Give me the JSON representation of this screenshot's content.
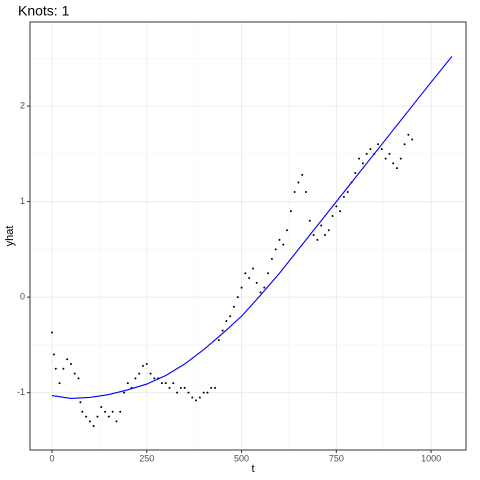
{
  "chart_data": {
    "type": "scatter",
    "title": "Knots: 1",
    "x_label": "t",
    "y_label": "yhat",
    "xlim": [
      -58,
      1092
    ],
    "ylim": [
      -1.6,
      2.88
    ],
    "xticks": [
      0,
      250,
      500,
      750,
      1000
    ],
    "yticks": [
      -1,
      0,
      1,
      2
    ],
    "xminorticks": [
      125,
      375,
      625,
      875
    ],
    "yminorticks": [
      -0.5,
      0.5,
      1.5,
      2.5
    ],
    "grid": true,
    "points": {
      "color": "#000000",
      "x": [
        0,
        5,
        10,
        20,
        30,
        40,
        50,
        60,
        70,
        75,
        80,
        90,
        100,
        110,
        120,
        130,
        140,
        150,
        160,
        170,
        180,
        190,
        200,
        210,
        220,
        230,
        240,
        250,
        260,
        270,
        280,
        290,
        300,
        310,
        320,
        330,
        340,
        350,
        360,
        370,
        380,
        390,
        400,
        410,
        420,
        430,
        440,
        450,
        460,
        470,
        480,
        490,
        500,
        510,
        520,
        530,
        540,
        550,
        560,
        570,
        580,
        590,
        600,
        610,
        620,
        630,
        640,
        650,
        660,
        670,
        680,
        690,
        700,
        710,
        720,
        730,
        740,
        750,
        760,
        770,
        780,
        790,
        800,
        810,
        820,
        830,
        840,
        850,
        860,
        870,
        880,
        890,
        900,
        910,
        920,
        930,
        940,
        950
      ],
      "y": [
        -0.37,
        -0.6,
        -0.75,
        -0.9,
        -0.75,
        -0.65,
        -0.7,
        -0.8,
        -0.85,
        -1.1,
        -1.2,
        -1.25,
        -1.3,
        -1.35,
        -1.25,
        -1.15,
        -1.2,
        -1.25,
        -1.2,
        -1.3,
        -1.2,
        -1.0,
        -0.9,
        -0.95,
        -0.85,
        -0.8,
        -0.72,
        -0.7,
        -0.8,
        -0.85,
        -0.85,
        -0.9,
        -0.9,
        -0.95,
        -0.9,
        -1.0,
        -0.95,
        -0.95,
        -1.0,
        -1.05,
        -1.08,
        -1.05,
        -1.0,
        -1.0,
        -0.95,
        -0.95,
        -0.45,
        -0.35,
        -0.25,
        -0.2,
        -0.1,
        0.0,
        0.1,
        0.25,
        0.2,
        0.3,
        0.15,
        0.05,
        0.1,
        0.25,
        0.4,
        0.5,
        0.6,
        0.55,
        0.7,
        0.9,
        1.1,
        1.2,
        1.28,
        1.1,
        0.8,
        0.65,
        0.6,
        0.75,
        0.65,
        0.7,
        0.85,
        0.95,
        0.9,
        1.05,
        1.1,
        1.2,
        1.3,
        1.45,
        1.4,
        1.5,
        1.55,
        1.5,
        1.6,
        1.55,
        1.45,
        1.5,
        1.4,
        1.35,
        1.45,
        1.6,
        1.7,
        1.65
      ]
    },
    "line": {
      "color": "#0000ff",
      "x": [
        0,
        50,
        100,
        150,
        200,
        250,
        300,
        350,
        400,
        450,
        500,
        550,
        600,
        650,
        700,
        750,
        800,
        850,
        900,
        950,
        1000,
        1055
      ],
      "y": [
        -1.03,
        -1.06,
        -1.05,
        -1.02,
        -0.97,
        -0.91,
        -0.82,
        -0.7,
        -0.55,
        -0.38,
        -0.2,
        0.02,
        0.25,
        0.5,
        0.75,
        1.0,
        1.25,
        1.5,
        1.75,
        2.0,
        2.25,
        2.52
      ]
    }
  }
}
